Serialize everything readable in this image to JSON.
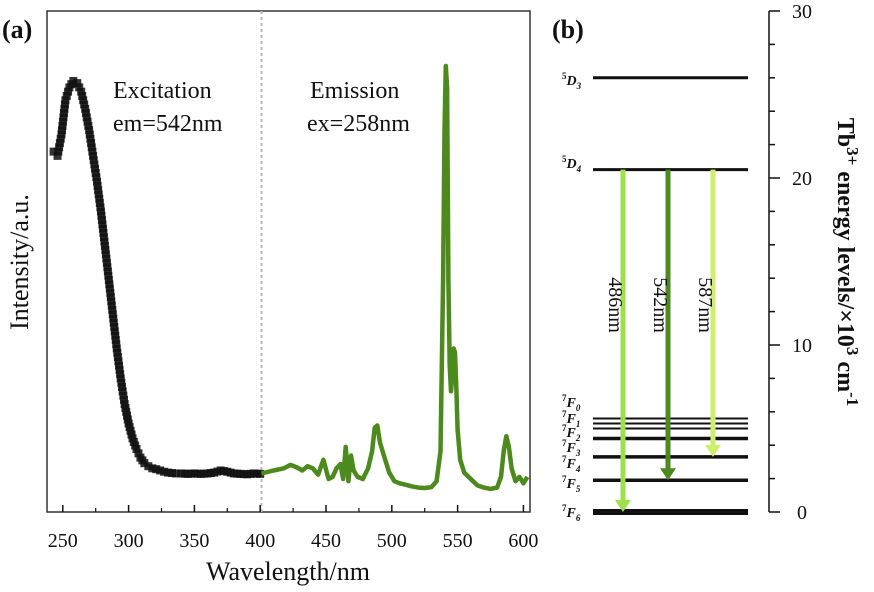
{
  "chart_data": [
    {
      "panel_label": "(a)",
      "type": "scatter-line",
      "xlabel": "Wavelength/nm",
      "ylabel": "Intensity/a.u.",
      "xlim": [
        238,
        605
      ],
      "ylim": [
        0,
        1.0
      ],
      "xticks": [
        250,
        300,
        350,
        400,
        450,
        500,
        550,
        600
      ],
      "xtick_labels": [
        "250",
        "300",
        "350",
        "400",
        "450",
        "500",
        "550",
        "600"
      ],
      "divider_x": 401,
      "annotations": [
        {
          "id": "exc_title",
          "text": "Excitation"
        },
        {
          "id": "exc_sub",
          "text": "em=542nm"
        },
        {
          "id": "emi_title",
          "text": "Emission"
        },
        {
          "id": "emi_sub",
          "text": "ex=258nm"
        }
      ],
      "series": [
        {
          "style": "square-markers",
          "color": "#111111",
          "x": [
            243,
            246,
            249,
            252,
            255,
            258,
            261,
            264,
            267,
            270,
            273,
            276,
            279,
            282,
            285,
            288,
            291,
            294,
            297,
            300,
            303,
            306,
            309,
            312,
            315,
            318,
            321,
            324,
            327,
            330,
            333,
            336,
            340,
            345,
            350,
            355,
            360,
            365,
            370,
            375,
            380,
            385,
            390,
            395,
            400
          ],
          "y": [
            0.8,
            0.79,
            0.84,
            0.92,
            0.95,
            0.965,
            0.96,
            0.94,
            0.9,
            0.85,
            0.79,
            0.73,
            0.66,
            0.58,
            0.5,
            0.42,
            0.34,
            0.27,
            0.21,
            0.165,
            0.13,
            0.105,
            0.085,
            0.072,
            0.065,
            0.06,
            0.058,
            0.055,
            0.052,
            0.05,
            0.049,
            0.048,
            0.048,
            0.047,
            0.048,
            0.047,
            0.048,
            0.05,
            0.055,
            0.052,
            0.048,
            0.047,
            0.046,
            0.048,
            0.047
          ]
        },
        {
          "style": "line",
          "color": "#4c8a1e",
          "x": [
            401,
            410,
            418,
            423,
            428,
            432,
            436,
            440,
            444,
            448,
            452,
            455,
            458,
            461,
            463,
            465,
            467,
            469,
            471,
            474,
            478,
            482,
            485,
            487,
            489,
            491,
            494,
            498,
            502,
            506,
            510,
            515,
            520,
            525,
            530,
            534,
            537,
            539,
            540,
            541,
            542,
            543,
            544,
            545,
            546,
            547,
            548,
            549,
            550,
            552,
            555,
            560,
            565,
            570,
            575,
            580,
            583,
            585,
            587,
            589,
            591,
            594,
            597,
            600,
            603
          ],
          "y": [
            0.048,
            0.055,
            0.06,
            0.068,
            0.062,
            0.055,
            0.065,
            0.06,
            0.045,
            0.08,
            0.035,
            0.04,
            0.06,
            0.07,
            0.035,
            0.11,
            0.03,
            0.09,
            0.055,
            0.04,
            0.035,
            0.06,
            0.1,
            0.155,
            0.16,
            0.12,
            0.09,
            0.05,
            0.03,
            0.025,
            0.022,
            0.018,
            0.015,
            0.014,
            0.016,
            0.03,
            0.1,
            0.5,
            0.85,
            1.0,
            0.95,
            0.5,
            0.3,
            0.24,
            0.28,
            0.34,
            0.33,
            0.25,
            0.15,
            0.08,
            0.05,
            0.035,
            0.02,
            0.015,
            0.012,
            0.015,
            0.04,
            0.1,
            0.135,
            0.11,
            0.06,
            0.03,
            0.04,
            0.025,
            0.04
          ]
        }
      ]
    },
    {
      "panel_label": "(b)",
      "type": "energy-level-diagram",
      "ylabel_parts": [
        "Tb",
        "3+",
        " energy levels/×10",
        "3",
        " cm",
        "-1"
      ],
      "ylim": [
        0,
        30
      ],
      "yticks": [
        0,
        10,
        20,
        30
      ],
      "ytick_labels": [
        "0",
        "10",
        "20",
        "30"
      ],
      "levels": [
        {
          "sup": "5",
          "base": "D",
          "sub": "3",
          "energy": 26.0
        },
        {
          "sup": "5",
          "base": "D",
          "sub": "4",
          "energy": 20.5
        },
        {
          "sup": "7",
          "base": "F",
          "sub": "0",
          "energy": 5.6
        },
        {
          "sup": "7",
          "base": "F",
          "sub": "1",
          "energy": 5.3
        },
        {
          "sup": "7",
          "base": "F",
          "sub": "2",
          "energy": 5.0
        },
        {
          "sup": "7",
          "base": "F",
          "sub": "3",
          "energy": 4.4
        },
        {
          "sup": "7",
          "base": "F",
          "sub": "4",
          "energy": 3.3
        },
        {
          "sup": "7",
          "base": "F",
          "sub": "5",
          "energy": 1.9
        },
        {
          "sup": "7",
          "base": "F",
          "sub": "6",
          "energy": 0.0
        }
      ],
      "transitions": [
        {
          "label": "486nm",
          "color": "#9ce04a",
          "from": 20.5,
          "to": 0.0
        },
        {
          "label": "542nm",
          "color": "#4c8a1e",
          "from": 20.5,
          "to": 1.9
        },
        {
          "label": "587nm",
          "color": "#cdf06a",
          "from": 20.5,
          "to": 3.3
        }
      ]
    }
  ]
}
